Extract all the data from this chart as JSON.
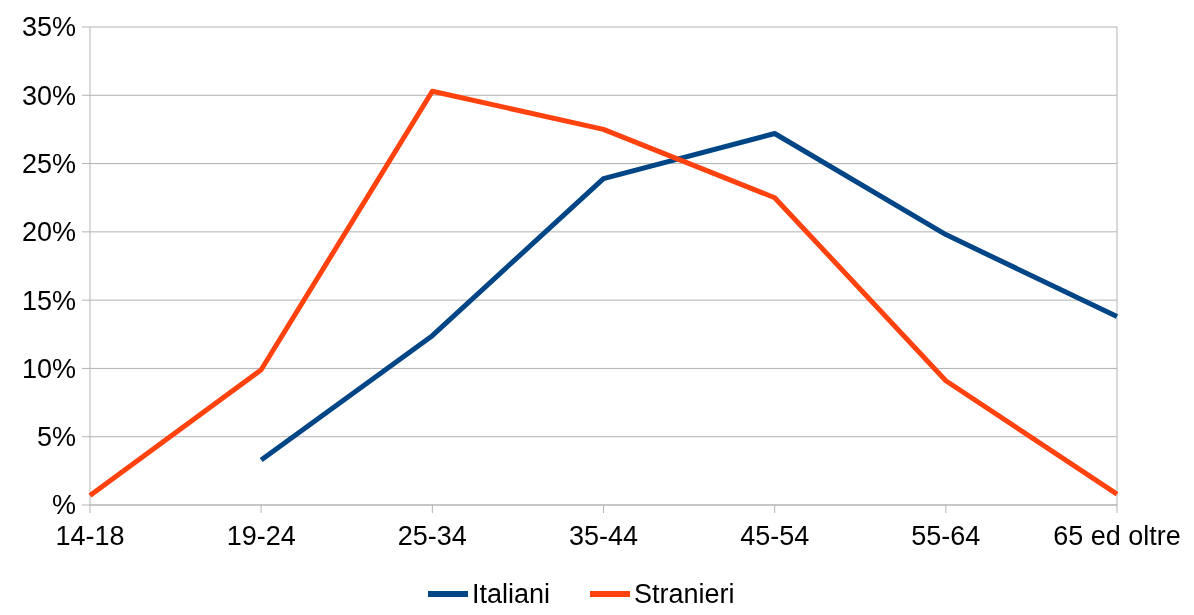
{
  "chart_data": {
    "type": "line",
    "categories": [
      "14-18",
      "19-24",
      "25-34",
      "35-44",
      "45-54",
      "55-64",
      "65 ed oltre"
    ],
    "series": [
      {
        "name": "Italiani",
        "color": "#004586",
        "values": [
          null,
          3.3,
          12.4,
          23.9,
          27.2,
          19.8,
          13.8
        ]
      },
      {
        "name": "Stranieri",
        "color": "#ff420e",
        "values": [
          0.7,
          9.9,
          30.3,
          27.5,
          22.5,
          9.1,
          0.8
        ]
      }
    ],
    "ylim": [
      0,
      35
    ],
    "yticks": [
      {
        "value": 0,
        "label": "%"
      },
      {
        "value": 5,
        "label": "5%"
      },
      {
        "value": 10,
        "label": "10%"
      },
      {
        "value": 15,
        "label": "15%"
      },
      {
        "value": 20,
        "label": "20%"
      },
      {
        "value": 25,
        "label": "25%"
      },
      {
        "value": 30,
        "label": "30%"
      },
      {
        "value": 35,
        "label": "35%"
      }
    ],
    "grid": "y",
    "legend": "bottom",
    "marker": "none",
    "line_style": "solid"
  }
}
